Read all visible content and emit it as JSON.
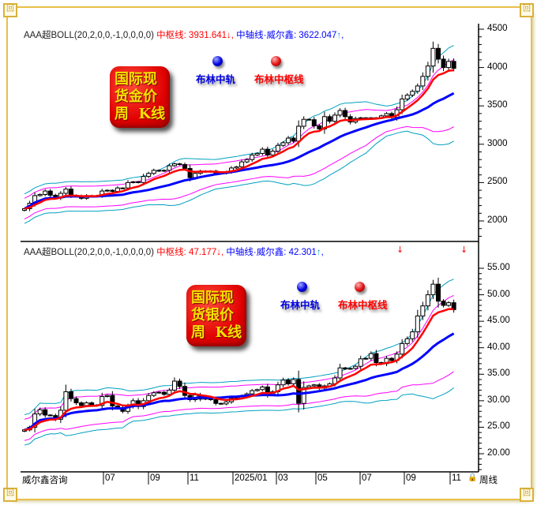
{
  "colors": {
    "mid_red": "#ff0000",
    "axis_blue": "#0000ff",
    "band_inner": "#ff00ff",
    "band_outer": "#00a0c0",
    "frame_gold": "#e8c04a"
  },
  "panels": [
    {
      "indicator": "AAA超BOLL(20,2,0,0,-1,0,0,0,0)",
      "mid_label": "中枢线:",
      "mid_value": "3931.641",
      "mid_arrow": "↓",
      "axis_label": "中轴线·威尔鑫:",
      "axis_value": "3622.047",
      "axis_arrow": "↑",
      "sep": ",",
      "badge": "国际现\n货金价\n周  K线",
      "legend": {
        "blue": "布林中轨",
        "red": "布林中枢线"
      },
      "y_ticks": [
        "4500",
        "4000",
        "3500",
        "3000",
        "2500",
        "2000"
      ]
    },
    {
      "indicator": "AAA超BOLL(20,2,0,0,-1,0,0,0,0)",
      "mid_label": "中枢线:",
      "mid_value": "47.177",
      "mid_arrow": "↓",
      "axis_label": "中轴线·威尔鑫:",
      "axis_value": "42.301",
      "axis_arrow": "↑",
      "sep": ",",
      "badge": "国际现\n货银价\n周  K线",
      "legend": {
        "blue": "布林中轨",
        "red": "布林中枢线"
      },
      "y_ticks": [
        "55.00",
        "50.00",
        "45.00",
        "40.00",
        "35.00",
        "30.00",
        "25.00",
        "20.00"
      ]
    }
  ],
  "x_axis": {
    "left_label": "威尔鑫咨询",
    "ticks": [
      "07",
      "09",
      "11",
      "2025/01",
      "03",
      "05",
      "07",
      "09",
      "11"
    ],
    "right_label": "周线",
    "lock_icon": "lock-icon"
  },
  "chart_data": [
    {
      "type": "candlestick",
      "title": "国际现货金价周K线",
      "ylim": [
        1800,
        4550
      ],
      "y_ticks": [
        4500,
        4000,
        3500,
        3000,
        2500,
        2000
      ],
      "x_ticks": [
        "07",
        "09",
        "11",
        "2025/01",
        "03",
        "05",
        "07",
        "09",
        "11"
      ],
      "grid": false,
      "series": [
        {
          "name": "close",
          "values": [
            2160,
            2230,
            2330,
            2345,
            2390,
            2335,
            2300,
            2360,
            2415,
            2335,
            2325,
            2295,
            2330,
            2320,
            2330,
            2390,
            2400,
            2385,
            2430,
            2430,
            2500,
            2510,
            2500,
            2580,
            2620,
            2660,
            2650,
            2660,
            2720,
            2745,
            2735,
            2685,
            2565,
            2620,
            2650,
            2640,
            2650,
            2625,
            2620,
            2640,
            2690,
            2705,
            2770,
            2800,
            2860,
            2880,
            2935,
            2860,
            2910,
            2985,
            3020,
            3080,
            3040,
            3235,
            3325,
            3320,
            3240,
            3200,
            3360,
            3300,
            3380,
            3440,
            3360,
            3290,
            3335,
            3345,
            3345,
            3340,
            3345,
            3370,
            3400,
            3350,
            3450,
            3590,
            3640,
            3690,
            3760,
            3885,
            4020,
            4250,
            4110,
            4000,
            4080,
            3990
          ]
        }
      ],
      "indicators": [
        "布林中轨",
        "布林中枢线"
      ]
    },
    {
      "type": "candlestick",
      "title": "国际现货银价周K线",
      "ylim": [
        17,
        58
      ],
      "y_ticks": [
        55,
        50,
        45,
        40,
        35,
        30,
        25,
        20
      ],
      "x_ticks": [
        "07",
        "09",
        "11",
        "2025/01",
        "03",
        "05",
        "07",
        "09",
        "11"
      ],
      "grid": false,
      "series": [
        {
          "name": "close",
          "values": [
            24.5,
            25,
            27.5,
            28.3,
            27.3,
            27.2,
            26.5,
            28.2,
            31.7,
            30.4,
            29.6,
            29.1,
            29.6,
            29.2,
            29.1,
            30.8,
            31.0,
            29.0,
            28.7,
            28.0,
            29.0,
            30.0,
            28.9,
            30.0,
            31.0,
            31.5,
            31.6,
            31.2,
            32.0,
            33.7,
            32.7,
            31.0,
            30.2,
            31.1,
            30.3,
            30.5,
            30.2,
            29.5,
            29.4,
            29.8,
            30.5,
            30.5,
            30.9,
            31.3,
            31.9,
            32.1,
            32.6,
            31.2,
            31.7,
            33.0,
            33.9,
            33.2,
            34.0,
            29.5,
            32.5,
            32.8,
            33.0,
            32.4,
            32.8,
            33.2,
            34.3,
            36.2,
            36.0,
            36.1,
            36.5,
            37.9,
            38.0,
            38.9,
            37.2,
            37.0,
            38.0,
            37.6,
            38.8,
            40.8,
            41.7,
            43.0,
            46.0,
            47.9,
            50.0,
            52.0,
            48.8,
            48.0,
            48.5,
            47.2
          ]
        }
      ],
      "indicators": [
        "布林中轨",
        "布林中枢线"
      ]
    }
  ]
}
